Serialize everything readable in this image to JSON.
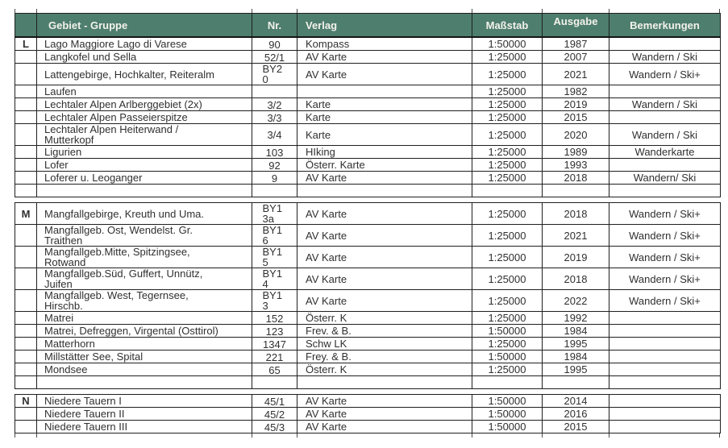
{
  "colors": {
    "header_bg": "#4e7e6e",
    "header_text": "#f3f2ec",
    "border": "#1f1f1f",
    "body_text": "#303030"
  },
  "table": {
    "headers": {
      "letter": "",
      "gebiet": "Gebiet - Gruppe",
      "nr": "Nr.",
      "verlag": "Verlag",
      "massstab": "Maßstab",
      "ausgabe": "Ausgabe",
      "bemerkungen": "Bemerkungen"
    },
    "groups": [
      {
        "letter": "L",
        "trailing_empty_row": true,
        "rows": [
          {
            "gebiet": "Lago Maggiore Lago di Varese",
            "nr": "90",
            "verlag": "Kompass",
            "massstab": "1:50000",
            "ausgabe": "1987",
            "bemerkungen": ""
          },
          {
            "gebiet": "Langkofel und Sella",
            "nr": "52/1",
            "verlag": "AV Karte",
            "massstab": "1:25000",
            "ausgabe": "2007",
            "bemerkungen": "Wandern / Ski"
          },
          {
            "gebiet": "Lattengebirge, Hochkalter, Reiteralm",
            "nr": "BY20",
            "verlag": "AV Karte",
            "massstab": "1:25000",
            "ausgabe": "2021",
            "bemerkungen": "Wandern / Ski+"
          },
          {
            "gebiet": "Laufen",
            "nr": "",
            "verlag": "",
            "massstab": "1:25000",
            "ausgabe": "1982",
            "bemerkungen": ""
          },
          {
            "gebiet": "Lechtaler Alpen Arlberggebiet (2x)",
            "nr": "3/2",
            "verlag": "Karte",
            "massstab": "1:25000",
            "ausgabe": "2019",
            "bemerkungen": "Wandern / Ski"
          },
          {
            "gebiet": "Lechtaler Alpen Passeierspitze",
            "nr": "3/3",
            "verlag": "Karte",
            "massstab": "1:25000",
            "ausgabe": "2015",
            "bemerkungen": ""
          },
          {
            "gebiet": "Lechtaler Alpen Heiterwand /\nMutterkopf",
            "nr": "3/4",
            "verlag": "Karte",
            "massstab": "1:25000",
            "ausgabe": "2020",
            "bemerkungen": "Wandern / Ski"
          },
          {
            "gebiet": "Ligurien",
            "nr": "103",
            "verlag": "HIking",
            "massstab": "1:25000",
            "ausgabe": "1989",
            "bemerkungen": "Wanderkarte"
          },
          {
            "gebiet": "Lofer",
            "nr": "92",
            "verlag": "Österr. Karte",
            "massstab": "1:25000",
            "ausgabe": "1993",
            "bemerkungen": ""
          },
          {
            "gebiet": "Loferer u. Leoganger",
            "nr": "9",
            "verlag": "AV Karte",
            "massstab": "1:25000",
            "ausgabe": "2018",
            "bemerkungen": "Wandern/ Ski"
          }
        ]
      },
      {
        "letter": "M",
        "trailing_empty_row": true,
        "rows": [
          {
            "gebiet": "Mangfallgebirge, Kreuth und Uma.",
            "nr": "BY13a",
            "verlag": "AV Karte",
            "massstab": "1:25000",
            "ausgabe": "2018",
            "bemerkungen": "Wandern / Ski+"
          },
          {
            "gebiet": "Mangfallgeb. Ost, Wendelst. Gr.\nTraithen",
            "nr": "BY16",
            "verlag": "AV Karte",
            "massstab": "1:25000",
            "ausgabe": "2021",
            "bemerkungen": "Wandern / Ski+"
          },
          {
            "gebiet": "Mangfallgeb.Mitte, Spitzingsee,\nRotwand",
            "nr": "BY15",
            "verlag": "AV Karte",
            "massstab": "1:25000",
            "ausgabe": "2019",
            "bemerkungen": "Wandern / Ski+"
          },
          {
            "gebiet": "Mangfallgeb.Süd, Guffert, Unnütz,\nJuifen",
            "nr": "BY14",
            "verlag": "AV Karte",
            "massstab": "1:25000",
            "ausgabe": "2018",
            "bemerkungen": "Wandern / Ski+"
          },
          {
            "gebiet": "Mangfallgeb. West, Tegernsee,\nHirschb.",
            "nr": "BY13",
            "verlag": "AV Karte",
            "massstab": "1:25000",
            "ausgabe": "2022",
            "bemerkungen": "Wandern / Ski+"
          },
          {
            "gebiet": "Matrei",
            "nr": "152",
            "verlag": "Österr. K",
            "massstab": "1:25000",
            "ausgabe": "1992",
            "bemerkungen": ""
          },
          {
            "gebiet": "Matrei, Defreggen, Virgental (Osttirol)",
            "nr": "123",
            "verlag": "Frev. & B.",
            "massstab": "1:50000",
            "ausgabe": "1984",
            "bemerkungen": ""
          },
          {
            "gebiet": "Matterhorn",
            "nr": "1347",
            "verlag": "Schw LK",
            "massstab": "1:25000",
            "ausgabe": "1995",
            "bemerkungen": ""
          },
          {
            "gebiet": "Millstätter See, Spital",
            "nr": "221",
            "verlag": "Frey. & B.",
            "massstab": "1:50000",
            "ausgabe": "1984",
            "bemerkungen": ""
          },
          {
            "gebiet": "Mondsee",
            "nr": "65",
            "verlag": "Österr. K",
            "massstab": "1:25000",
            "ausgabe": "1995",
            "bemerkungen": ""
          }
        ]
      },
      {
        "letter": "N",
        "trailing_empty_row": false,
        "rows": [
          {
            "gebiet": "Niedere Tauern I",
            "nr": "45/1",
            "verlag": "AV Karte",
            "massstab": "1:50000",
            "ausgabe": "2014",
            "bemerkungen": ""
          },
          {
            "gebiet": "Niedere Tauern II",
            "nr": "45/2",
            "verlag": "AV Karte",
            "massstab": "1:50000",
            "ausgabe": "2016",
            "bemerkungen": ""
          },
          {
            "gebiet": "Niedere Tauern III",
            "nr": "45/3",
            "verlag": "AV Karte",
            "massstab": "1:50000",
            "ausgabe": "2015",
            "bemerkungen": ""
          }
        ]
      }
    ]
  }
}
